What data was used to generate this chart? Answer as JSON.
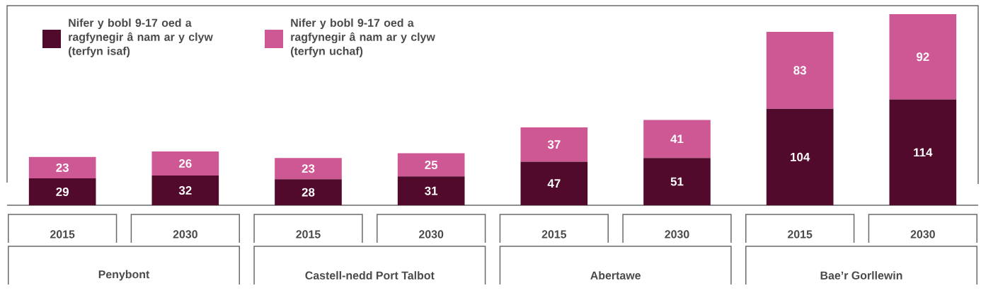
{
  "chart_data": {
    "type": "bar",
    "stacked": true,
    "data_labels": true,
    "legend": "top left",
    "categories": [
      "2015",
      "2030",
      "2015",
      "2030",
      "2015",
      "2030",
      "2015",
      "2030"
    ],
    "annotations": [
      "Penybont",
      "Castell-nedd Port Talbot",
      "Abertawe",
      "Bae’r Gorllewin"
    ],
    "series": [
      {
        "name": "Nifer y bobl 9-17 oed a ragfynegir â nam ar y clyw (terfyn isaf)",
        "color": "#520a2c",
        "values": [
          29,
          32,
          28,
          31,
          47,
          51,
          104,
          114
        ]
      },
      {
        "name": "Nifer y bobl 9-17 oed a ragfynegir â nam ar y clyw (terfyn uchaf)",
        "color": "#cd5894",
        "values": [
          23,
          26,
          23,
          25,
          37,
          41,
          83,
          92
        ]
      }
    ]
  }
}
